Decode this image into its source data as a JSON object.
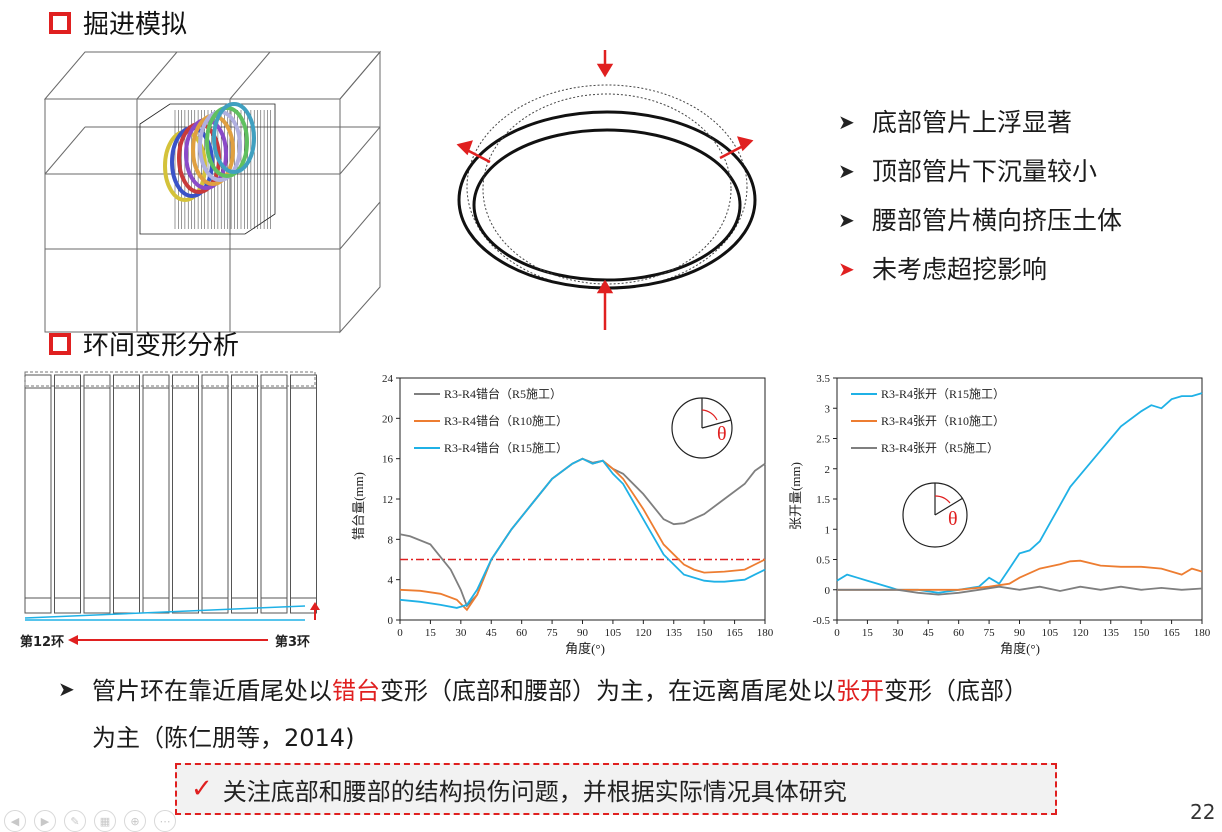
{
  "section1_title": "掘进模拟",
  "section2_title": "环间变形分析",
  "bullets": [
    {
      "text": "底部管片上浮显著",
      "arrow_color": "#222222"
    },
    {
      "text": "顶部管片下沉量较小",
      "arrow_color": "#222222"
    },
    {
      "text": "腰部管片横向挤压土体",
      "arrow_color": "#222222"
    },
    {
      "text": "未考虑超挖影响",
      "arrow_color": "#e02020"
    }
  ],
  "ring_labels": {
    "left": "第12环",
    "right": "第3环"
  },
  "body": {
    "p1": "管片环在靠近盾尾处以",
    "p2": "错台",
    "p3": "变形（底部和腰部）为主，在远离盾尾处以",
    "p4": "张开",
    "p5": "变形（底部）",
    "line2": "为主（陈仁朋等，2014)"
  },
  "note": "关注底部和腰部的结构损伤问题，并根据实际情况具体研究",
  "page_number": "22",
  "toolbar_icons": [
    "prev-icon",
    "play-icon",
    "pen-icon",
    "slides-icon",
    "zoom-icon",
    "more-icon"
  ],
  "colors": {
    "accent": "#e02020",
    "gray_series": "#7f7f7f",
    "orange_series": "#ed7d31",
    "blue_series": "#1fb1e6"
  },
  "chart_data": [
    {
      "type": "line",
      "xlabel": "角度(°)",
      "ylabel": "错台量(mm)",
      "xlim": [
        0,
        180
      ],
      "ylim": [
        0,
        24
      ],
      "xticks": [
        0,
        15,
        30,
        45,
        60,
        75,
        90,
        105,
        120,
        135,
        150,
        165,
        180
      ],
      "yticks": [
        0,
        4,
        8,
        12,
        16,
        20,
        24
      ],
      "reference_line": 6,
      "theta_symbol": "θ",
      "legend_position": "top-left",
      "series": [
        {
          "name": "R3-R4错台（R5施工）",
          "color": "#7f7f7f",
          "x": [
            0,
            5,
            15,
            25,
            30,
            33,
            38,
            45,
            55,
            65,
            75,
            85,
            90,
            95,
            100,
            105,
            110,
            120,
            130,
            135,
            140,
            150,
            160,
            170,
            175,
            180
          ],
          "y": [
            8.5,
            8.3,
            7.5,
            5.0,
            3.0,
            1.4,
            2.5,
            6.0,
            9.0,
            11.5,
            14.0,
            15.5,
            16.0,
            15.6,
            15.8,
            15.0,
            14.5,
            12.5,
            10.0,
            9.5,
            9.6,
            10.5,
            12.0,
            13.5,
            14.8,
            15.5
          ]
        },
        {
          "name": "R3-R4错台（R10施工）",
          "color": "#ed7d31",
          "x": [
            0,
            10,
            20,
            28,
            33,
            38,
            45,
            55,
            65,
            75,
            85,
            90,
            95,
            100,
            105,
            110,
            120,
            130,
            140,
            145,
            150,
            160,
            170,
            175,
            180
          ],
          "y": [
            3.0,
            2.9,
            2.6,
            2.0,
            1.0,
            2.5,
            6.0,
            9.0,
            11.5,
            14.0,
            15.5,
            16.0,
            15.5,
            15.8,
            15.0,
            14.0,
            11.0,
            7.5,
            5.5,
            5.0,
            4.7,
            4.8,
            5.0,
            5.5,
            6.0
          ]
        },
        {
          "name": "R3-R4错台（R15施工）",
          "color": "#1fb1e6",
          "x": [
            0,
            10,
            20,
            28,
            33,
            38,
            45,
            55,
            65,
            75,
            85,
            90,
            95,
            100,
            105,
            110,
            120,
            130,
            140,
            150,
            155,
            160,
            170,
            175,
            180
          ],
          "y": [
            2.0,
            1.8,
            1.5,
            1.2,
            1.5,
            3.0,
            6.0,
            9.0,
            11.5,
            14.0,
            15.5,
            16.0,
            15.5,
            15.8,
            14.5,
            13.5,
            10.0,
            6.5,
            4.5,
            3.9,
            3.8,
            3.8,
            4.0,
            4.5,
            5.0
          ]
        }
      ]
    },
    {
      "type": "line",
      "xlabel": "角度(°)",
      "ylabel": "张开量(mm)",
      "xlim": [
        0,
        180
      ],
      "ylim": [
        -0.5,
        3.5
      ],
      "xticks": [
        0,
        15,
        30,
        45,
        60,
        75,
        90,
        105,
        120,
        135,
        150,
        165,
        180
      ],
      "yticks": [
        -0.5,
        0,
        0.5,
        1,
        1.5,
        2,
        2.5,
        3,
        3.5
      ],
      "theta_symbol": "θ",
      "legend_position": "top-left",
      "series": [
        {
          "name": "R3-R4张开（R15施工）",
          "color": "#1fb1e6",
          "x": [
            0,
            5,
            10,
            15,
            20,
            25,
            30,
            40,
            50,
            60,
            70,
            75,
            80,
            85,
            90,
            95,
            100,
            105,
            110,
            115,
            120,
            130,
            140,
            150,
            155,
            160,
            165,
            170,
            175,
            180
          ],
          "y": [
            0.15,
            0.25,
            0.2,
            0.15,
            0.1,
            0.05,
            0.0,
            0.0,
            -0.05,
            0.0,
            0.05,
            0.2,
            0.1,
            0.35,
            0.6,
            0.65,
            0.8,
            1.1,
            1.4,
            1.7,
            1.9,
            2.3,
            2.7,
            2.95,
            3.05,
            3.0,
            3.15,
            3.2,
            3.2,
            3.25
          ]
        },
        {
          "name": "R3-R4张开（R10施工）",
          "color": "#ed7d31",
          "x": [
            0,
            15,
            30,
            45,
            60,
            75,
            85,
            90,
            100,
            110,
            115,
            120,
            130,
            140,
            150,
            160,
            165,
            170,
            175,
            180
          ],
          "y": [
            0.0,
            0.0,
            0.0,
            0.0,
            0.0,
            0.05,
            0.1,
            0.2,
            0.35,
            0.42,
            0.47,
            0.48,
            0.4,
            0.38,
            0.38,
            0.35,
            0.3,
            0.25,
            0.35,
            0.3
          ]
        },
        {
          "name": "R3-R4张开（R5施工）",
          "color": "#7f7f7f",
          "x": [
            0,
            15,
            30,
            40,
            50,
            60,
            70,
            80,
            90,
            100,
            110,
            120,
            130,
            140,
            150,
            160,
            170,
            180
          ],
          "y": [
            0.0,
            0.0,
            0.0,
            -0.05,
            -0.08,
            -0.05,
            0.0,
            0.05,
            0.0,
            0.05,
            -0.02,
            0.05,
            0.0,
            0.05,
            0.0,
            0.03,
            0.0,
            0.02
          ]
        }
      ]
    }
  ]
}
